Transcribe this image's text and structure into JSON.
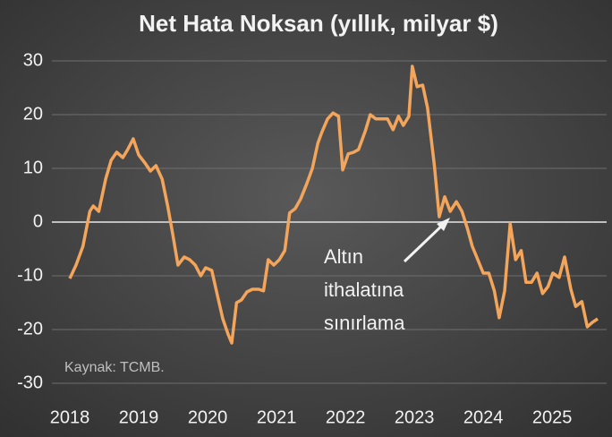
{
  "chart_data": {
    "type": "line",
    "title": "Net Hata Noksan (yıllık, milyar $)",
    "source": "Kaynak: TCMB.",
    "annotation": [
      "Altın",
      "ithalatına",
      "sınırlama"
    ],
    "x": [
      2018.0,
      2018.09,
      2018.19,
      2018.29,
      2018.34,
      2018.42,
      2018.52,
      2018.6,
      2018.68,
      2018.77,
      2018.84,
      2018.92,
      2019.0,
      2019.09,
      2019.17,
      2019.25,
      2019.34,
      2019.42,
      2019.49,
      2019.57,
      2019.66,
      2019.74,
      2019.82,
      2019.9,
      2019.97,
      2020.06,
      2020.14,
      2020.22,
      2020.3,
      2020.35,
      2020.42,
      2020.49,
      2020.57,
      2020.65,
      2020.74,
      2020.81,
      2020.88,
      2020.96,
      2021.04,
      2021.12,
      2021.19,
      2021.27,
      2021.35,
      2021.44,
      2021.52,
      2021.6,
      2021.66,
      2021.74,
      2021.82,
      2021.9,
      2021.96,
      2022.04,
      2022.12,
      2022.19,
      2022.29,
      2022.36,
      2022.44,
      2022.52,
      2022.61,
      2022.69,
      2022.77,
      2022.84,
      2022.92,
      2022.97,
      2023.04,
      2023.12,
      2023.19,
      2023.29,
      2023.36,
      2023.44,
      2023.52,
      2023.61,
      2023.69,
      2023.77,
      2023.84,
      2023.92,
      2024.0,
      2024.08,
      2024.16,
      2024.23,
      2024.31,
      2024.39,
      2024.47,
      2024.55,
      2024.62,
      2024.7,
      2024.78,
      2024.86,
      2024.94,
      2025.01,
      2025.1,
      2025.18,
      2025.27,
      2025.34,
      2025.43,
      2025.51,
      2025.58,
      2025.66
    ],
    "series": [
      {
        "name": "Net Hata Noksan",
        "color": "#f4a55c",
        "values": [
          -10.5,
          -8,
          -4.5,
          2,
          3,
          2,
          8,
          11.5,
          13,
          12,
          13.5,
          15.5,
          12.5,
          11,
          9.5,
          10.5,
          8,
          3,
          -2,
          -8,
          -6.5,
          -7,
          -8,
          -10,
          -8.5,
          -9,
          -13.5,
          -18,
          -21,
          -22.5,
          -15,
          -14.5,
          -13,
          -12.5,
          -12.5,
          -12.8,
          -7,
          -8,
          -7,
          -5.3,
          1.7,
          2.5,
          4.3,
          7.2,
          10,
          14.7,
          16.8,
          19.2,
          20.3,
          19.7,
          9.7,
          12.7,
          13,
          13.5,
          17,
          20,
          19.2,
          19.2,
          19.2,
          17.2,
          19.7,
          18,
          19.7,
          29,
          25.2,
          25.5,
          21.3,
          10.5,
          1,
          4.7,
          2,
          3.8,
          2,
          -1.2,
          -4.5,
          -7,
          -9.5,
          -9.5,
          -12.8,
          -17.8,
          -12.8,
          -0.3,
          -7,
          -5.3,
          -11.2,
          -11.2,
          -9.5,
          -13.3,
          -12,
          -9.5,
          -10.3,
          -6.5,
          -12.5,
          -15.7,
          -14.8,
          -19.5,
          -18.7,
          -18
        ]
      }
    ],
    "xlim": [
      2017.74,
      2025.66
    ],
    "xticks": [
      2018,
      2019,
      2020,
      2021,
      2022,
      2023,
      2024,
      2025
    ],
    "ylim": [
      -30,
      30
    ],
    "yticks": [
      -30,
      -20,
      -10,
      0,
      10,
      20,
      30
    ],
    "grid": true
  }
}
